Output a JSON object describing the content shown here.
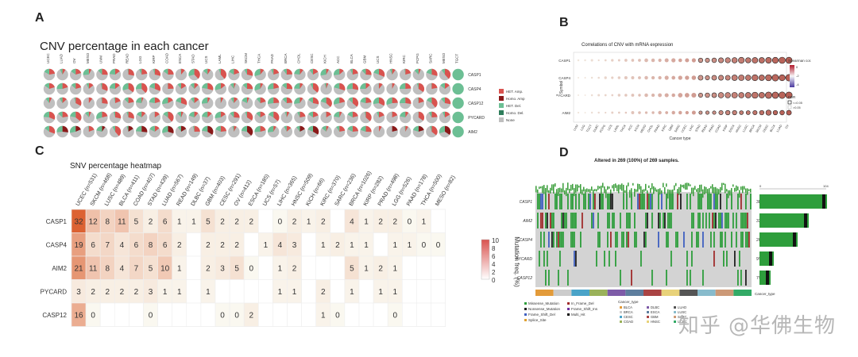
{
  "panels": {
    "a": "A",
    "b": "B",
    "c": "C",
    "d": "D"
  },
  "panelA": {
    "title": "CNV percentage in each cancer",
    "cancers": [
      "UCEC",
      "LUAD",
      "OV",
      "MESO",
      "UVM",
      "PRAD",
      "READ",
      "LGG",
      "KIRP",
      "COAD",
      "ESCA",
      "STAD",
      "UCS",
      "LAML",
      "LIHC",
      "SKCM",
      "THCA",
      "PAAD",
      "BRCA",
      "CHOL",
      "CESC",
      "KICH",
      "ACC",
      "BLCA",
      "GBM",
      "UCS",
      "HNSC",
      "KIRC",
      "PCPG",
      "SARC",
      "MESO",
      "TGCT"
    ],
    "genes": [
      "CASP1",
      "CASP4",
      "CASP12",
      "PYCARD",
      "AIM2"
    ],
    "legend": [
      "HET. Amp.",
      "Homo. Amp",
      "HET. Del.",
      "Homo. Del.",
      "None"
    ],
    "colors": {
      "het_amp": "#d9534f",
      "homo_amp": "#8b1a1a",
      "het_del": "#6cbf94",
      "homo_del": "#2e7d5b",
      "none": "#bfbfbf"
    }
  },
  "panelB": {
    "title": "Correlations of CNV with mRNA expression",
    "genes": [
      "CASP1",
      "CASP4",
      "PYCARD",
      "AIM2"
    ],
    "ylabel": "Symbol",
    "xlabel": "Cancer type",
    "cancers": [
      "UVM",
      "LGG",
      "TGCT",
      "DLBC",
      "PCPG",
      "UCS",
      "LAML",
      "THCA",
      "ACC",
      "KICH",
      "MESO",
      "CHOL",
      "PRAD",
      "KIRC",
      "GBM",
      "SARC",
      "UCEC",
      "LIHC",
      "STAD",
      "READ",
      "PAAD",
      "COAD",
      "KIRP",
      "ESCA",
      "HNSC",
      "LUSC",
      "BRCA",
      "SKCM",
      "CESC",
      "BLCA",
      "LUAD",
      "OV"
    ],
    "legend_title": "Spearman cor.",
    "legend_ticks": [
      "0",
      "-2",
      "-4"
    ],
    "fdr_title": "FDR",
    "fdr_items": [
      "<=0.05",
      ">0.05"
    ]
  },
  "panelC": {
    "title": "SNV percentage heatmap",
    "genes": [
      "CASP1",
      "CASP4",
      "AIM2",
      "PYCARD",
      "CASP12"
    ],
    "cancers": [
      "UCEC (n=531)",
      "SKCM (n=468)",
      "LUSC (n=489)",
      "BLCA (n=411)",
      "COAD (n=407)",
      "STAD (n=439)",
      "LUAD (n=567)",
      "READ (n=149)",
      "DLBC (n=37)",
      "GBM (n=403)",
      "CESC (n=291)",
      "OV (n=412)",
      "ESCA (n=185)",
      "UCS (n=57)",
      "LIHC (n=365)",
      "HNSC (n=509)",
      "KICH (n=66)",
      "KIRC (n=370)",
      "SARC (n=236)",
      "BRCA (n=1026)",
      "KIRP (n=282)",
      "PRAD (n=498)",
      "LGG (n=526)",
      "PAAD (n=178)",
      "THCA (n=500)",
      "MESO (n=82)"
    ],
    "values": [
      [
        32,
        12,
        8,
        11,
        5,
        2,
        6,
        1,
        1,
        5,
        2,
        2,
        2,
        null,
        0,
        2,
        1,
        2,
        null,
        4,
        1,
        2,
        2,
        0,
        1,
        null
      ],
      [
        19,
        6,
        7,
        4,
        6,
        8,
        6,
        2,
        null,
        2,
        2,
        2,
        null,
        1,
        4,
        3,
        null,
        1,
        2,
        1,
        1,
        null,
        1,
        1,
        0,
        0
      ],
      [
        21,
        11,
        8,
        4,
        7,
        5,
        10,
        1,
        null,
        2,
        3,
        5,
        0,
        null,
        1,
        2,
        null,
        null,
        null,
        5,
        1,
        2,
        1,
        null,
        null,
        null
      ],
      [
        3,
        2,
        2,
        2,
        2,
        3,
        1,
        1,
        null,
        1,
        null,
        null,
        null,
        null,
        1,
        1,
        null,
        2,
        null,
        1,
        null,
        1,
        1,
        null,
        null,
        null
      ],
      [
        16,
        0,
        null,
        null,
        null,
        0,
        null,
        null,
        null,
        null,
        0,
        0,
        2,
        null,
        null,
        null,
        null,
        1,
        0,
        null,
        null,
        null,
        0,
        null,
        null,
        null
      ]
    ],
    "legend_title": "Mutation freq. (%)",
    "legend_ticks": [
      "10",
      "8",
      "6",
      "4",
      "2",
      "0"
    ]
  },
  "panelD": {
    "title": "Altered in 269 (100%) of 269 samples.",
    "genes": [
      "CASP1",
      "AIM2",
      "CASP4",
      "PYCARD",
      "CASP12"
    ],
    "percents": [
      "38%",
      "33%",
      "26%",
      "9%",
      "7%"
    ],
    "axis_ticks": [
      "0",
      "104"
    ],
    "cancer_type_label": "Cancer_type",
    "mutation_legend": [
      "Missense_Mutation",
      "Nonsense_Mutation",
      "Frame_Shift_Del",
      "Splice_Site",
      "In_Frame_Del",
      "Frame_Shift_Ins",
      "Multi_Hit"
    ],
    "cancer_legend_title": "Cancer_type",
    "cancer_legend": [
      "BLCA",
      "BRCA",
      "CESC",
      "COAD",
      "DLBC",
      "ESCA",
      "GBM",
      "HNSC",
      "LUAD",
      "LUSC",
      "SARC",
      "UCEC"
    ]
  },
  "watermark": "知乎 @华佛生物"
}
